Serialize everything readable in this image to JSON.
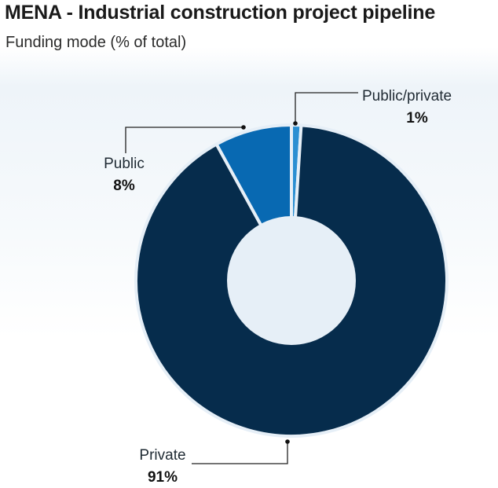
{
  "title": "MENA - Industrial construction project pipeline",
  "subtitle": "Funding mode (% of total)",
  "chart_data": {
    "type": "pie",
    "donut": true,
    "title": "MENA - Industrial construction project pipeline",
    "subtitle": "Funding mode (% of total)",
    "slices": [
      {
        "label": "Public/private",
        "value": 1,
        "value_label": "1%",
        "color": "#2b8fd2"
      },
      {
        "label": "Private",
        "value": 91,
        "value_label": "91%",
        "color": "#062c4c"
      },
      {
        "label": "Public",
        "value": 8,
        "value_label": "8%",
        "color": "#0869b2"
      }
    ],
    "hole_color": "#e6eff7",
    "legend": "none"
  }
}
